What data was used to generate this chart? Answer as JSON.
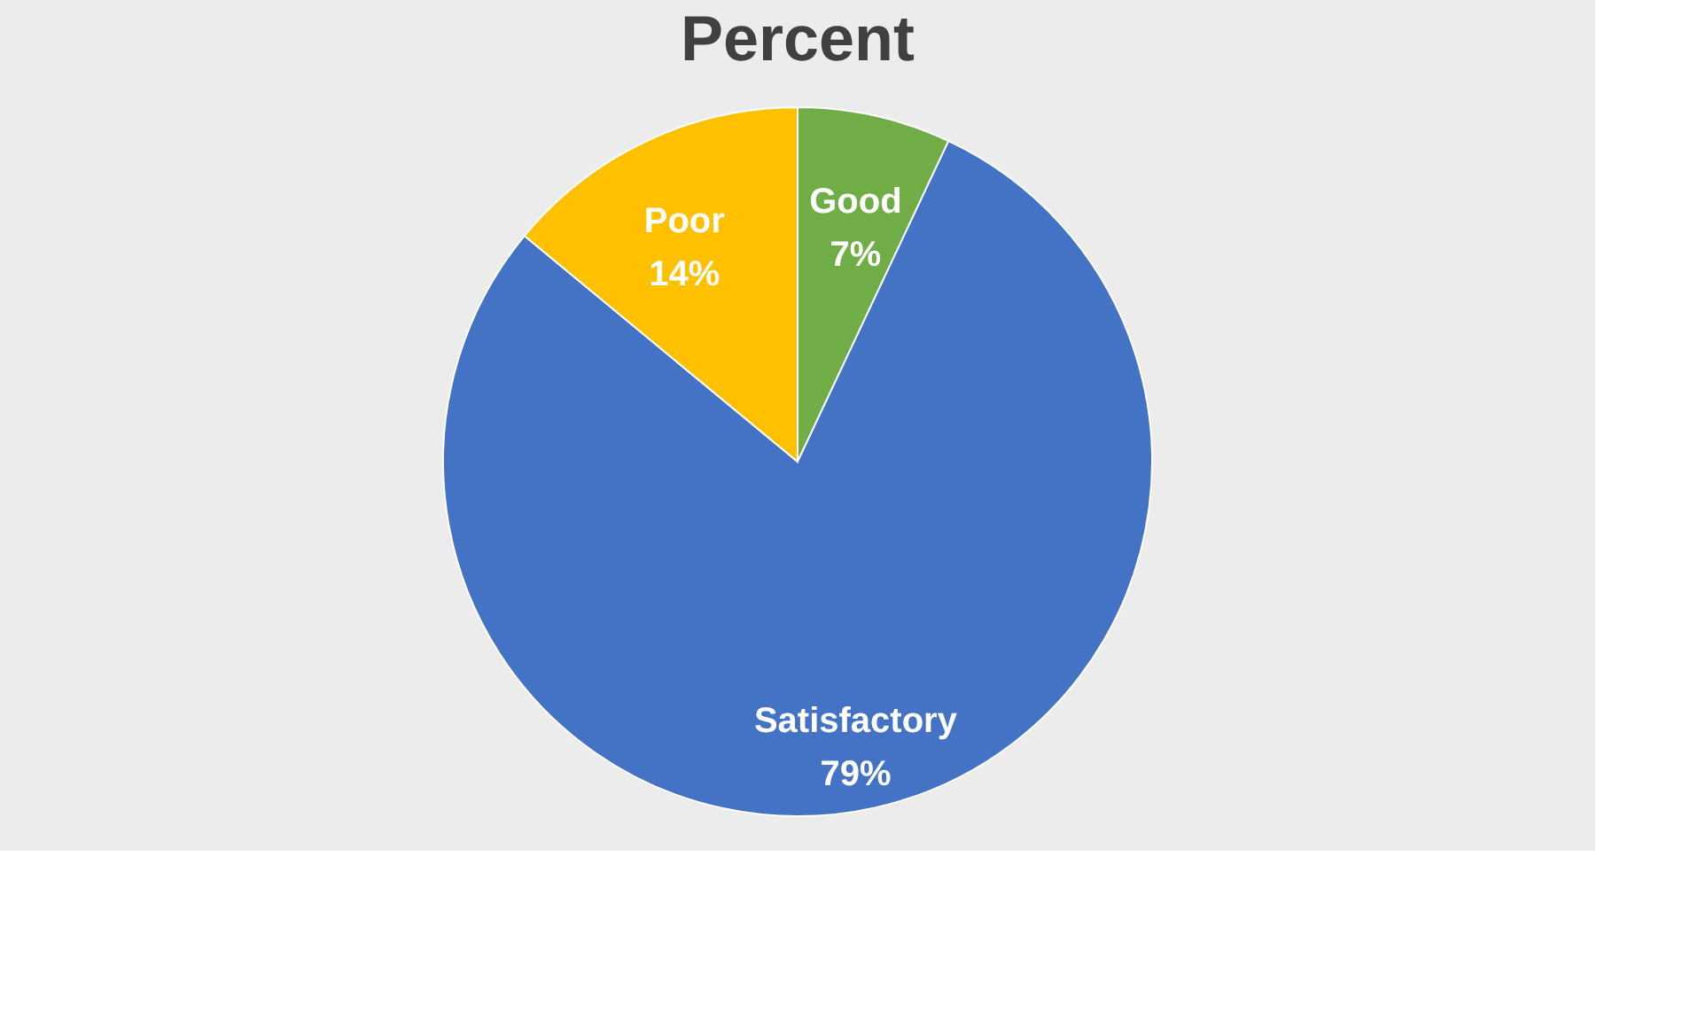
{
  "chart_data": {
    "type": "pie",
    "title": "Percent",
    "categories": [
      "Good",
      "Satisfactory",
      "Poor"
    ],
    "values": [
      7,
      79,
      14
    ],
    "colors": [
      "#70ad47",
      "#4472c4",
      "#ffc000"
    ],
    "value_labels": [
      "7%",
      "79%",
      "14%"
    ],
    "legend": false
  }
}
